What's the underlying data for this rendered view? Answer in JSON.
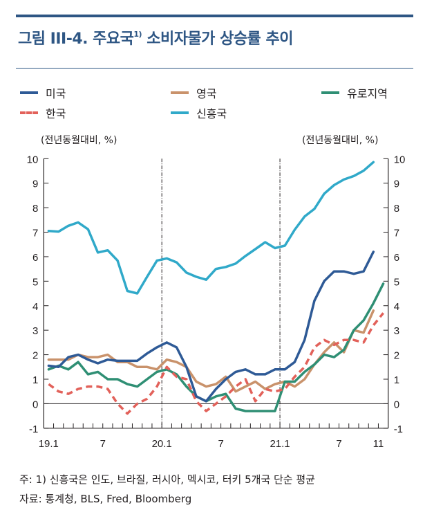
{
  "figure": {
    "title_prefix": "그림 III-4. 주요국",
    "title_sup": "1)",
    "title_suffix": " 소비자물가 상승률 추이",
    "unit_left": "(전년동월대비, %)",
    "unit_right": "(전년동월대비, %)",
    "note": "주: 1) 신흥국은 인도, 브라질, 러시아, 멕시코, 터키 5개국 단순 평균",
    "source": "자료: 통계청, BLS, Fred, Bloomberg",
    "accent_color": "#2e5684"
  },
  "legend": [
    {
      "label": "미국",
      "color": "#2e5a96",
      "dashed": false
    },
    {
      "label": "영국",
      "color": "#c9926b",
      "dashed": false
    },
    {
      "label": "유로지역",
      "color": "#2f8f74",
      "dashed": false
    },
    {
      "label": "한국",
      "color": "#e2615a",
      "dashed": true
    },
    {
      "label": "신흥국",
      "color": "#30a9c9",
      "dashed": false
    }
  ],
  "chart_data": {
    "type": "line",
    "title": "주요국 소비자물가 상승률 추이",
    "xlabel": "",
    "ylabel": "전년동월대비, %",
    "ylim": [
      -1,
      10
    ],
    "yticks": [
      -1,
      0,
      1,
      2,
      3,
      4,
      5,
      6,
      7,
      8,
      9,
      10
    ],
    "x_start": "2019-01",
    "x_months": 35,
    "xtick_labels": [
      {
        "index": 0,
        "label": "19.1"
      },
      {
        "index": 6,
        "label": "7"
      },
      {
        "index": 12,
        "label": "20.1"
      },
      {
        "index": 18,
        "label": "7"
      },
      {
        "index": 24,
        "label": "21.1"
      },
      {
        "index": 30,
        "label": "7"
      },
      {
        "index": 34,
        "label": "11"
      }
    ],
    "vertical_dividers": [
      "20.1",
      "21.1"
    ],
    "grid": false,
    "legend_position": "top",
    "series": [
      {
        "name": "신흥국",
        "color": "#30a9c9",
        "dashed": false,
        "values": [
          7.05,
          7.02,
          7.26,
          7.4,
          7.12,
          6.17,
          6.26,
          5.84,
          4.6,
          4.5,
          5.18,
          5.84,
          5.93,
          5.77,
          5.35,
          5.18,
          5.06,
          5.5,
          5.58,
          5.72,
          6.03,
          6.31,
          6.59,
          6.35,
          6.45,
          7.1,
          7.64,
          7.95,
          8.57,
          8.92,
          9.15,
          9.29,
          9.51,
          9.86
        ]
      },
      {
        "name": "영국",
        "color": "#c9926b",
        "dashed": false,
        "values": [
          1.8,
          1.8,
          1.8,
          2.0,
          1.9,
          1.9,
          2.0,
          1.7,
          1.7,
          1.5,
          1.5,
          1.4,
          1.8,
          1.7,
          1.5,
          0.9,
          0.7,
          0.8,
          1.1,
          0.5,
          0.7,
          0.9,
          0.6,
          0.8,
          0.9,
          0.7,
          1.0,
          1.6,
          2.1,
          2.5,
          2.1,
          3.0,
          2.9,
          3.8
        ]
      },
      {
        "name": "유로지역",
        "color": "#2f8f74",
        "dashed": false,
        "values": [
          1.4,
          1.55,
          1.4,
          1.7,
          1.2,
          1.3,
          1.0,
          1.0,
          0.8,
          0.7,
          1.0,
          1.3,
          1.4,
          1.2,
          0.7,
          0.3,
          0.1,
          0.3,
          0.4,
          -0.2,
          -0.3,
          -0.3,
          -0.3,
          -0.3,
          0.9,
          0.9,
          1.3,
          1.6,
          2.0,
          1.9,
          2.2,
          3.0,
          3.4,
          4.1,
          4.9
        ]
      },
      {
        "name": "한국",
        "color": "#e2615a",
        "dashed": true,
        "values": [
          0.8,
          0.5,
          0.4,
          0.6,
          0.7,
          0.7,
          0.6,
          0.0,
          -0.4,
          0.0,
          0.2,
          0.7,
          1.5,
          1.1,
          1.0,
          0.1,
          -0.3,
          0.0,
          0.3,
          0.7,
          1.0,
          0.1,
          0.6,
          0.5,
          0.6,
          1.1,
          1.5,
          2.3,
          2.6,
          2.4,
          2.6,
          2.6,
          2.5,
          3.2,
          3.7
        ]
      },
      {
        "name": "미국",
        "color": "#2e5a96",
        "dashed": false,
        "values": [
          1.55,
          1.5,
          1.9,
          2.0,
          1.8,
          1.65,
          1.8,
          1.75,
          1.75,
          1.75,
          2.05,
          2.3,
          2.5,
          2.3,
          1.5,
          0.3,
          0.1,
          0.6,
          1.0,
          1.3,
          1.4,
          1.2,
          1.2,
          1.4,
          1.4,
          1.7,
          2.6,
          4.2,
          5.0,
          5.4,
          5.4,
          5.3,
          5.4,
          6.2
        ]
      }
    ]
  }
}
